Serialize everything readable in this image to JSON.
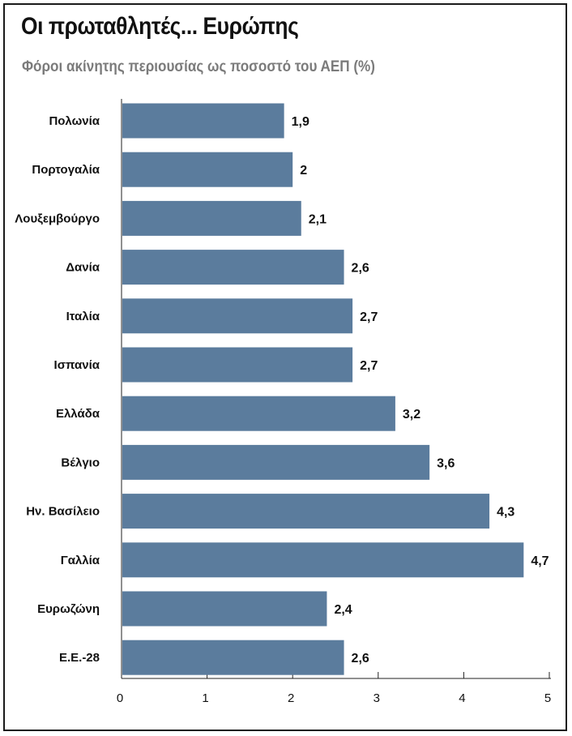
{
  "chart_data": {
    "type": "bar",
    "orientation": "horizontal",
    "title": "Οι πρωταθλητές... Ευρώπης",
    "subtitle": "Φόροι ακίνητης περιουσίας ως ποσοστό του ΑΕΠ (%)",
    "categories": [
      "Πολωνία",
      "Πορτογαλία",
      "Λουξεμβούργο",
      "Δανία",
      "Ιταλία",
      "Ισπανία",
      "Ελλάδα",
      "Βέλγιο",
      "Ην. Βασίλειο",
      "Γαλλία",
      "Ευρωζώνη",
      "Ε.Ε.-28"
    ],
    "values": [
      1.9,
      2,
      2.1,
      2.6,
      2.7,
      2.7,
      3.2,
      3.6,
      4.3,
      4.7,
      2.4,
      2.6
    ],
    "value_labels": [
      "1,9",
      "2",
      "2,1",
      "2,6",
      "2,7",
      "2,7",
      "3,2",
      "3,6",
      "4,3",
      "4,7",
      "2,4",
      "2,6"
    ],
    "xlim": [
      0,
      5
    ],
    "xticks": [
      0,
      1,
      2,
      3,
      4,
      5
    ],
    "xlabel": "",
    "ylabel": "",
    "grid": false,
    "bar_color": "#5b7c9d"
  }
}
